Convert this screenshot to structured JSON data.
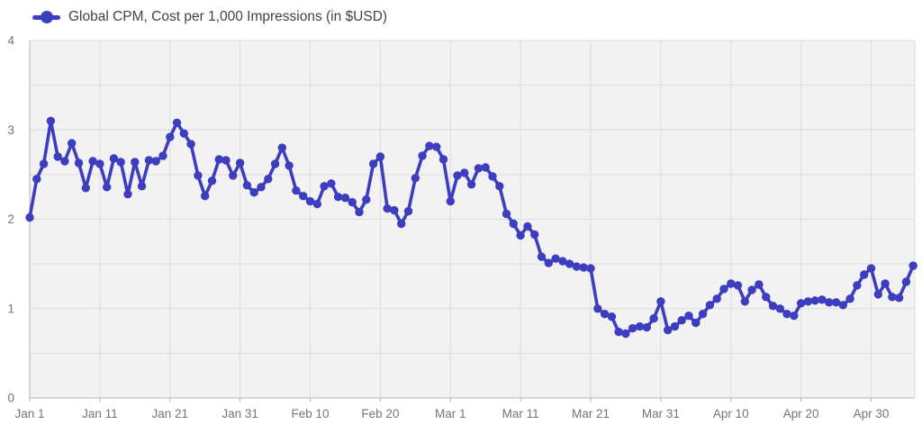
{
  "legend": {
    "label": "Global CPM, Cost per 1,000 Impressions (in $USD)"
  },
  "colors": {
    "line": "#3d3dbf",
    "plot_bg": "#f2f2f2",
    "grid": "#dcdcdc",
    "axis": "#b3b3b3",
    "tick_text": "#757575",
    "legend_text": "#424242"
  },
  "chart_data": {
    "type": "line",
    "title": "Global CPM, Cost per 1,000 Impressions (in $USD)",
    "xlabel": "",
    "ylabel": "",
    "ylim": [
      0,
      4
    ],
    "grid": true,
    "legend_position": "top-left",
    "y_ticks": [
      "0",
      "1",
      "2",
      "3",
      "4"
    ],
    "y_gridline_step": 0.5,
    "x_tick_labels": [
      "Jan 1",
      "Jan 11",
      "Jan 21",
      "Jan 31",
      "Feb 10",
      "Feb 20",
      "Mar 1",
      "Mar 11",
      "Mar 21",
      "Mar 31",
      "Apr 10",
      "Apr 20",
      "Apr 30"
    ],
    "x_tick_day_offsets": [
      0,
      10,
      20,
      30,
      40,
      50,
      60,
      70,
      80,
      90,
      100,
      110,
      120
    ],
    "x": [
      "Jan 1",
      "Jan 2",
      "Jan 3",
      "Jan 4",
      "Jan 5",
      "Jan 6",
      "Jan 7",
      "Jan 8",
      "Jan 9",
      "Jan 10",
      "Jan 11",
      "Jan 12",
      "Jan 13",
      "Jan 14",
      "Jan 15",
      "Jan 16",
      "Jan 17",
      "Jan 18",
      "Jan 19",
      "Jan 20",
      "Jan 21",
      "Jan 22",
      "Jan 23",
      "Jan 24",
      "Jan 25",
      "Jan 26",
      "Jan 27",
      "Jan 28",
      "Jan 29",
      "Jan 30",
      "Jan 31",
      "Feb 1",
      "Feb 2",
      "Feb 3",
      "Feb 4",
      "Feb 5",
      "Feb 6",
      "Feb 7",
      "Feb 8",
      "Feb 9",
      "Feb 10",
      "Feb 11",
      "Feb 12",
      "Feb 13",
      "Feb 14",
      "Feb 15",
      "Feb 16",
      "Feb 17",
      "Feb 18",
      "Feb 19",
      "Feb 20",
      "Feb 21",
      "Feb 22",
      "Feb 23",
      "Feb 24",
      "Feb 25",
      "Feb 26",
      "Feb 27",
      "Feb 28",
      "Feb 29",
      "Mar 1",
      "Mar 2",
      "Mar 3",
      "Mar 4",
      "Mar 5",
      "Mar 6",
      "Mar 7",
      "Mar 8",
      "Mar 9",
      "Mar 10",
      "Mar 11",
      "Mar 12",
      "Mar 13",
      "Mar 14",
      "Mar 15",
      "Mar 16",
      "Mar 17",
      "Mar 18",
      "Mar 19",
      "Mar 20",
      "Mar 21",
      "Mar 22",
      "Mar 23",
      "Mar 24",
      "Mar 25",
      "Mar 26",
      "Mar 27",
      "Mar 28",
      "Mar 29",
      "Mar 30",
      "Mar 31",
      "Apr 1",
      "Apr 2",
      "Apr 3",
      "Apr 4",
      "Apr 5",
      "Apr 6",
      "Apr 7",
      "Apr 8",
      "Apr 9",
      "Apr 10",
      "Apr 11",
      "Apr 12",
      "Apr 13",
      "Apr 14",
      "Apr 15",
      "Apr 16",
      "Apr 17",
      "Apr 18",
      "Apr 19",
      "Apr 20",
      "Apr 21",
      "Apr 22",
      "Apr 23",
      "Apr 24",
      "Apr 25",
      "Apr 26",
      "Apr 27",
      "Apr 28",
      "Apr 29",
      "Apr 30",
      "May 1",
      "May 2",
      "May 3",
      "May 4",
      "May 5",
      "May 6"
    ],
    "values": [
      2.02,
      2.45,
      2.62,
      3.1,
      2.7,
      2.65,
      2.85,
      2.63,
      2.35,
      2.65,
      2.62,
      2.36,
      2.68,
      2.64,
      2.28,
      2.64,
      2.37,
      2.66,
      2.65,
      2.71,
      2.92,
      3.08,
      2.96,
      2.84,
      2.49,
      2.26,
      2.43,
      2.67,
      2.66,
      2.49,
      2.63,
      2.38,
      2.3,
      2.36,
      2.45,
      2.62,
      2.8,
      2.6,
      2.32,
      2.26,
      2.2,
      2.17,
      2.37,
      2.4,
      2.25,
      2.24,
      2.19,
      2.08,
      2.22,
      2.62,
      2.7,
      2.12,
      2.1,
      1.95,
      2.09,
      2.46,
      2.71,
      2.82,
      2.81,
      2.67,
      2.2,
      2.49,
      2.52,
      2.39,
      2.57,
      2.58,
      2.48,
      2.37,
      2.06,
      1.95,
      1.82,
      1.92,
      1.83,
      1.58,
      1.51,
      1.56,
      1.53,
      1.5,
      1.47,
      1.46,
      1.45,
      1.0,
      0.94,
      0.91,
      0.74,
      0.72,
      0.78,
      0.8,
      0.79,
      0.89,
      1.08,
      0.76,
      0.8,
      0.87,
      0.92,
      0.84,
      0.94,
      1.04,
      1.11,
      1.22,
      1.28,
      1.26,
      1.08,
      1.21,
      1.27,
      1.13,
      1.03,
      1.0,
      0.94,
      0.92,
      1.06,
      1.08,
      1.09,
      1.1,
      1.07,
      1.07,
      1.04,
      1.11,
      1.26,
      1.38,
      1.45,
      1.16,
      1.28,
      1.13,
      1.12,
      1.3,
      1.48
    ]
  }
}
